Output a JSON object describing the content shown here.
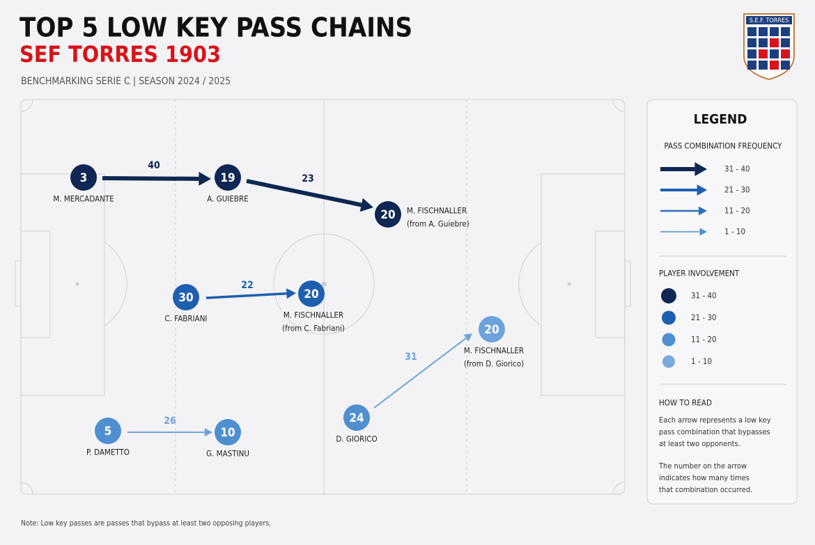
{
  "header": {
    "title": "TOP 5 LOW KEY PASS CHAINS",
    "subtitle": "SEF TORRES 1903",
    "tagline": "BENCHMARKING SERIE C | SEASON 2024 / 2025"
  },
  "logo": {
    "text": "S.E.F. TORRES"
  },
  "nodes": [
    {
      "value": 3,
      "name": "M. MERCADANTE",
      "color": "#0f2752"
    },
    {
      "value": 19,
      "name": "A. GUIEBRE",
      "color": "#0f2752"
    },
    {
      "value": 20,
      "name": "M. FISCHNALLER",
      "note": "(from A. Guiebre)",
      "color": "#0f2752"
    },
    {
      "value": 30,
      "name": "C. FABRIANI",
      "color": "#1f5fb0"
    },
    {
      "value": 20,
      "name": "M. FISCHNALLER",
      "note": "(from C. Fabriani)",
      "color": "#1f5fb0"
    },
    {
      "value": 5,
      "name": "P. DAMETTO",
      "color": "#4f8fd0"
    },
    {
      "value": 10,
      "name": "G. MASTINU",
      "color": "#4f8fd0"
    },
    {
      "value": 24,
      "name": "D. GIORICO",
      "color": "#4f8fd0"
    },
    {
      "value": 20,
      "name": "M. FISCHNALLER",
      "note": "(from D. Giorico)",
      "color": "#6ea2da"
    }
  ],
  "passes": [
    {
      "value": 40,
      "color": "#0f2752"
    },
    {
      "value": 23,
      "color": "#0f2752"
    },
    {
      "value": 22,
      "color": "#1f5fb0"
    },
    {
      "value": 26,
      "color": "#6ea2da"
    },
    {
      "value": 31,
      "color": "#6ea2da"
    }
  ],
  "legend": {
    "title": "LEGEND",
    "frequency": {
      "title": "PASS COMBINATION FREQUENCY",
      "items": [
        {
          "label": "31 - 40",
          "color": "#0f2752"
        },
        {
          "label": "21 - 30",
          "color": "#1f5fb0"
        },
        {
          "label": "11 - 20",
          "color": "#2f6fbd"
        },
        {
          "label": "1 - 10",
          "color": "#4f8fd0"
        }
      ]
    },
    "involvement": {
      "title": "PLAYER INVOLVEMENT",
      "items": [
        {
          "label": "31 - 40",
          "color": "#0f2752"
        },
        {
          "label": "21 - 30",
          "color": "#1f5fb0"
        },
        {
          "label": "11 - 20",
          "color": "#4f8fd0"
        },
        {
          "label": "1 - 10",
          "color": "#7aa9dc"
        }
      ]
    },
    "how_to_read": {
      "title": "HOW TO READ",
      "paragraphs": [
        [
          "Each arrow represents a low key",
          "pass combination that bypasses",
          "at least two opponents."
        ],
        [
          "The number on the arrow",
          "indicates how many times",
          "that combination occurred."
        ]
      ]
    }
  },
  "note": "Note: Low key passes are passes that bypass at least two opposing players."
}
